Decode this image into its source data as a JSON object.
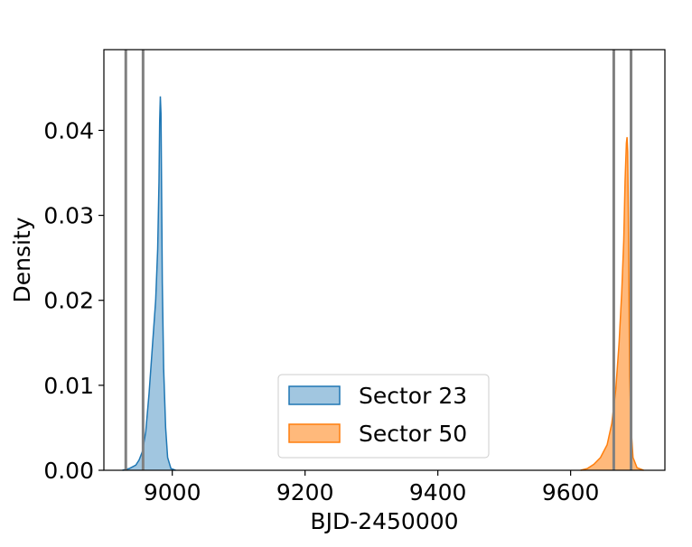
{
  "chart_data": {
    "type": "area",
    "xlabel": "BJD-2450000",
    "ylabel": "Density",
    "xlim": [
      8897,
      9742
    ],
    "ylim": [
      0,
      0.0495
    ],
    "xticks": [
      9000,
      9200,
      9400,
      9600
    ],
    "xtick_labels": [
      "9000",
      "9200",
      "9400",
      "9600"
    ],
    "yticks": [
      0,
      0.01,
      0.02,
      0.03,
      0.04
    ],
    "ytick_labels": [
      "0.00",
      "0.01",
      "0.02",
      "0.03",
      "0.04"
    ],
    "grid": false,
    "legend_position": "lower center",
    "vertical_lines": [
      8930,
      8956,
      9665,
      9691
    ],
    "vertical_line_color": "#808080",
    "series": [
      {
        "name": "Sector 23",
        "line_color": "#1f77b4",
        "fill_color": "#1f77b4",
        "fill_opacity": 0.42,
        "points": [
          [
            8925,
            0
          ],
          [
            8935,
            0.0002
          ],
          [
            8945,
            0.0006
          ],
          [
            8950,
            0.0012
          ],
          [
            8955,
            0.0022
          ],
          [
            8960,
            0.0045
          ],
          [
            8965,
            0.009
          ],
          [
            8970,
            0.0145
          ],
          [
            8975,
            0.02
          ],
          [
            8978,
            0.026
          ],
          [
            8980,
            0.034
          ],
          [
            8981,
            0.041
          ],
          [
            8982,
            0.044
          ],
          [
            8983,
            0.042
          ],
          [
            8984,
            0.032
          ],
          [
            8985,
            0.022
          ],
          [
            8987,
            0.012
          ],
          [
            8990,
            0.005
          ],
          [
            8993,
            0.0015
          ],
          [
            8998,
            0.0002
          ],
          [
            9005,
            0
          ]
        ]
      },
      {
        "name": "Sector 50",
        "line_color": "#ff7f0e",
        "fill_color": "#ff7f0e",
        "fill_opacity": 0.55,
        "points": [
          [
            9615,
            0
          ],
          [
            9625,
            0.0002
          ],
          [
            9635,
            0.0007
          ],
          [
            9645,
            0.0015
          ],
          [
            9655,
            0.003
          ],
          [
            9662,
            0.0055
          ],
          [
            9668,
            0.0095
          ],
          [
            9673,
            0.015
          ],
          [
            9677,
            0.021
          ],
          [
            9680,
            0.027
          ],
          [
            9682,
            0.034
          ],
          [
            9684,
            0.0385
          ],
          [
            9685,
            0.0392
          ],
          [
            9686,
            0.0375
          ],
          [
            9687,
            0.03
          ],
          [
            9688,
            0.02
          ],
          [
            9689,
            0.011
          ],
          [
            9691,
            0.005
          ],
          [
            9694,
            0.0015
          ],
          [
            9700,
            0.0003
          ],
          [
            9710,
            0
          ]
        ]
      }
    ]
  }
}
